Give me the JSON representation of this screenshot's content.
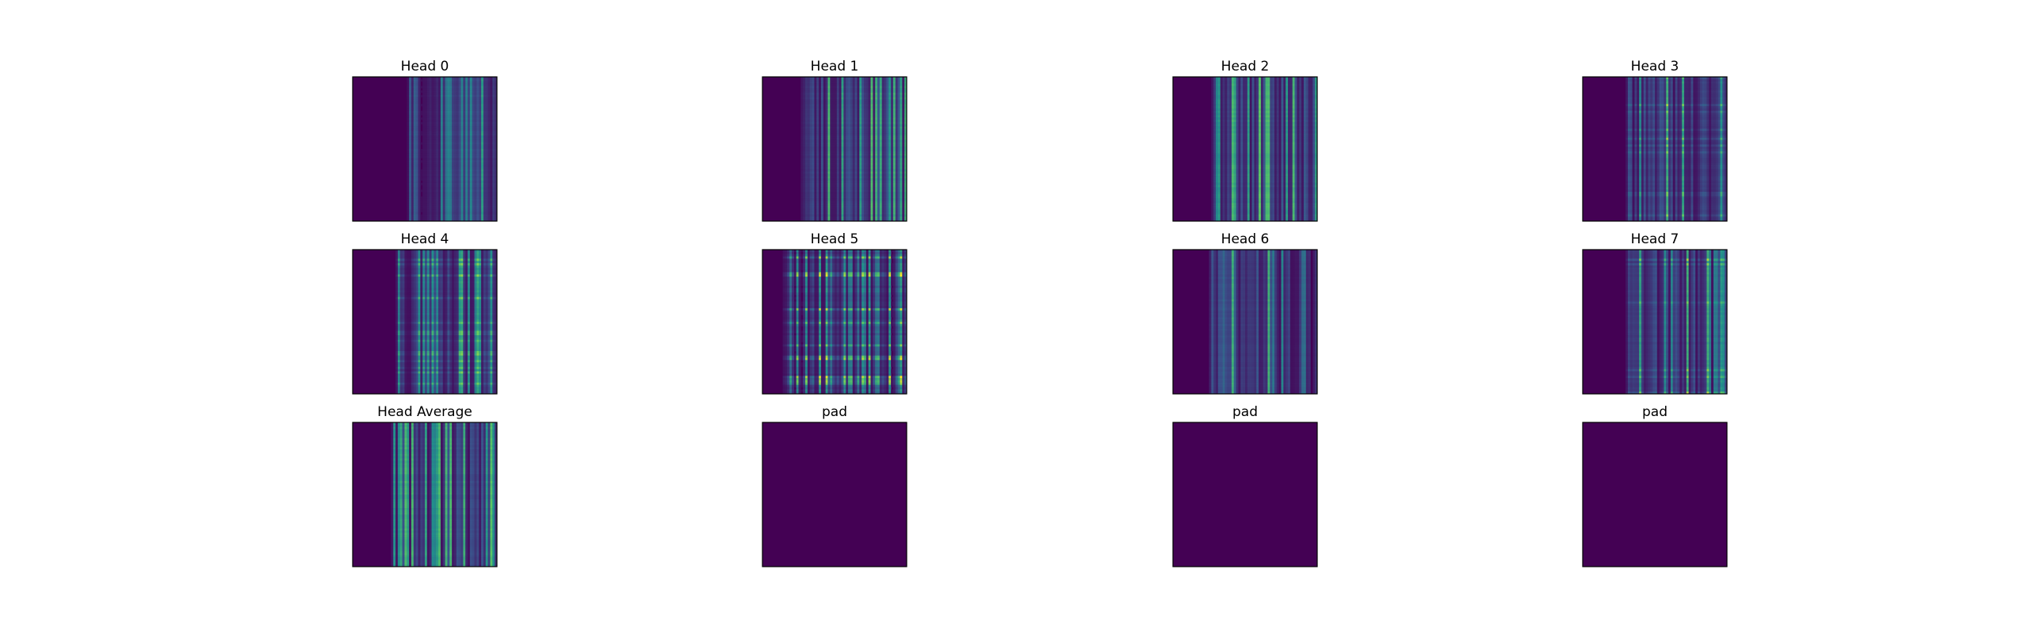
{
  "chart_data": {
    "type": "heatmap",
    "colormap": "viridis",
    "colors": {
      "background": "#ffffff",
      "low": "#440154",
      "mid": "#21918c",
      "high": "#5ec962"
    },
    "grid": false,
    "axes_ticks": false,
    "panels": [
      {
        "title": "Head 0",
        "pattern": "columns-right",
        "seed": 11
      },
      {
        "title": "Head 1",
        "pattern": "columns-mid",
        "seed": 23
      },
      {
        "title": "Head 2",
        "pattern": "columns-mid",
        "seed": 37
      },
      {
        "title": "Head 3",
        "pattern": "columns-grid",
        "seed": 41
      },
      {
        "title": "Head 4",
        "pattern": "columns-grid",
        "seed": 53
      },
      {
        "title": "Head 5",
        "pattern": "grid",
        "seed": 67
      },
      {
        "title": "Head 6",
        "pattern": "columns-left",
        "seed": 71
      },
      {
        "title": "Head 7",
        "pattern": "columns-grid",
        "seed": 83
      },
      {
        "title": "Head Average",
        "pattern": "columns-mid",
        "seed": 97
      },
      {
        "title": "pad",
        "pattern": "empty",
        "seed": 0
      },
      {
        "title": "pad",
        "pattern": "empty",
        "seed": 0
      },
      {
        "title": "pad",
        "pattern": "empty",
        "seed": 0
      }
    ]
  }
}
